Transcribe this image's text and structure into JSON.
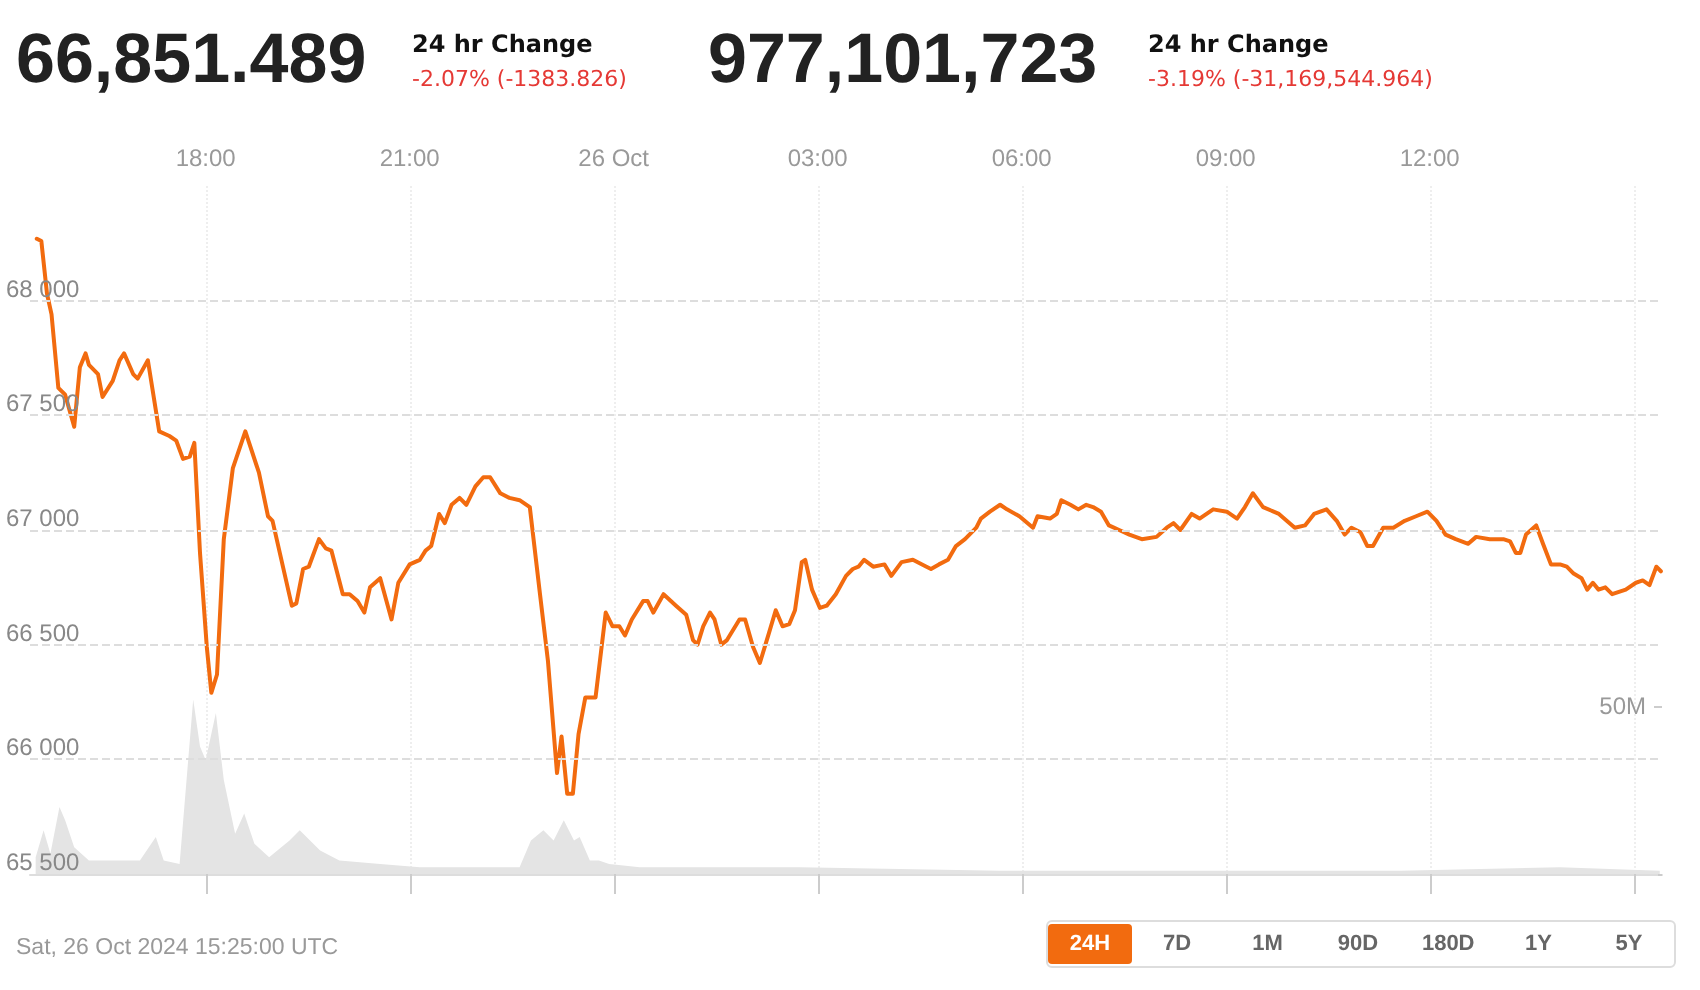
{
  "chart_data": {
    "type": "line",
    "annotations": [
      "66,851.489",
      "24 hr Change",
      "-2.07% (-1383.826)",
      "977,101,723",
      "24 hr Change",
      "-3.19% (-31,169,544.964)",
      "Sat, 26 Oct 2024 15:25:00 UTC",
      "24H",
      "7D",
      "1M",
      "90D",
      "180D",
      "1Y",
      "5Y"
    ],
    "series": [
      {
        "type": "area",
        "axis": "y2",
        "color": "#e4e4e4",
        "x": [
          "2024-10-25T15:30",
          "2024-10-25T15:37",
          "2024-10-25T15:43",
          "2024-10-25T15:51",
          "2024-10-25T15:56",
          "2024-10-25T16:04",
          "2024-10-25T16:17",
          "2024-10-25T16:35",
          "2024-10-25T17:02",
          "2024-10-25T17:16",
          "2024-10-25T17:23",
          "2024-10-25T17:37",
          "2024-10-25T17:49",
          "2024-10-25T17:55",
          "2024-10-25T18:00",
          "2024-10-25T18:09",
          "2024-10-25T18:16",
          "2024-10-25T18:26",
          "2024-10-25T18:34",
          "2024-10-25T18:43",
          "2024-10-25T18:56",
          "2024-10-25T19:14",
          "2024-10-25T19:23",
          "2024-10-25T19:41",
          "2024-10-25T19:58",
          "2024-10-25T20:34",
          "2024-10-25T21:09",
          "2024-10-25T22:02",
          "2024-10-25T22:37",
          "2024-10-25T22:47",
          "2024-10-25T22:58",
          "2024-10-25T23:07",
          "2024-10-25T23:16",
          "2024-10-25T23:25",
          "2024-10-25T23:30",
          "2024-10-25T23:39",
          "2024-10-25T23:47",
          "2024-10-25T23:56",
          "2024-10-26T00:23",
          "2024-10-26T02:44",
          "2024-10-26T05:41",
          "2024-10-26T08:37",
          "2024-10-26T11:34",
          "2024-10-26T13:55",
          "2024-10-26T15:23"
        ],
        "values": [
          5,
          13,
          6,
          20,
          16,
          8,
          4,
          4,
          4,
          11,
          4,
          3,
          52,
          38,
          34,
          48,
          28,
          12,
          18,
          9,
          5,
          10,
          13,
          7,
          4,
          3,
          2,
          2,
          2,
          10,
          13,
          10,
          16,
          10,
          11,
          4,
          4,
          3,
          2,
          2,
          1,
          1,
          1,
          2,
          1
        ]
      },
      {
        "type": "line",
        "color": "#f26b0f",
        "x": [
          "2024-10-25T15:31",
          "2024-10-25T15:35",
          "2024-10-25T15:40",
          "2024-10-25T15:44",
          "2024-10-25T15:50",
          "2024-10-25T15:56",
          "2024-10-25T16:04",
          "2024-10-25T16:09",
          "2024-10-25T16:14",
          "2024-10-25T16:17",
          "2024-10-25T16:25",
          "2024-10-25T16:29",
          "2024-10-25T16:38",
          "2024-10-25T16:44",
          "2024-10-25T16:48",
          "2024-10-25T16:56",
          "2024-10-25T17:00",
          "2024-10-25T17:09",
          "2024-10-25T17:19",
          "2024-10-25T17:28",
          "2024-10-25T17:34",
          "2024-10-25T17:40",
          "2024-10-25T17:46",
          "2024-10-25T17:50",
          "2024-10-25T17:55",
          "2024-10-25T18:01",
          "2024-10-25T18:05",
          "2024-10-25T18:10",
          "2024-10-25T18:16",
          "2024-10-25T18:24",
          "2024-10-25T18:35",
          "2024-10-25T18:47",
          "2024-10-25T18:55",
          "2024-10-25T18:59",
          "2024-10-25T19:16",
          "2024-10-25T19:20",
          "2024-10-25T19:26",
          "2024-10-25T19:31",
          "2024-10-25T19:40",
          "2024-10-25T19:46",
          "2024-10-25T19:51",
          "2024-10-25T20:01",
          "2024-10-25T20:07",
          "2024-10-25T20:14",
          "2024-10-25T20:20",
          "2024-10-25T20:25",
          "2024-10-25T20:34",
          "2024-10-25T20:44",
          "2024-10-25T20:50",
          "2024-10-25T21:00",
          "2024-10-25T21:09",
          "2024-10-25T21:14",
          "2024-10-25T21:19",
          "2024-10-25T21:26",
          "2024-10-25T21:31",
          "2024-10-25T21:37",
          "2024-10-25T21:44",
          "2024-10-25T21:50",
          "2024-10-25T21:58",
          "2024-10-25T22:05",
          "2024-10-25T22:11",
          "2024-10-25T22:20",
          "2024-10-25T22:28",
          "2024-10-25T22:37",
          "2024-10-25T22:46",
          "2024-10-25T22:55",
          "2024-10-25T23:02",
          "2024-10-25T23:10",
          "2024-10-25T23:14",
          "2024-10-25T23:19",
          "2024-10-25T23:24",
          "2024-10-25T23:29",
          "2024-10-25T23:35",
          "2024-10-25T23:44",
          "2024-10-25T23:53",
          "2024-10-25T23:59",
          "2024-10-26T00:05",
          "2024-10-26T00:10",
          "2024-10-26T00:16",
          "2024-10-26T00:26",
          "2024-10-26T00:30",
          "2024-10-26T00:35",
          "2024-10-26T00:44",
          "2024-10-26T00:55",
          "2024-10-26T01:04",
          "2024-10-26T01:10",
          "2024-10-26T01:14",
          "2024-10-26T01:19",
          "2024-10-26T01:25",
          "2024-10-26T01:29",
          "2024-10-26T01:35",
          "2024-10-26T01:40",
          "2024-10-26T01:51",
          "2024-10-26T01:56",
          "2024-10-26T02:03",
          "2024-10-26T02:09",
          "2024-10-26T02:17",
          "2024-10-26T02:23",
          "2024-10-26T02:29",
          "2024-10-26T02:35",
          "2024-10-26T02:40",
          "2024-10-26T02:46",
          "2024-10-26T02:49",
          "2024-10-26T02:55",
          "2024-10-26T03:02",
          "2024-10-26T03:08",
          "2024-10-26T03:16",
          "2024-10-26T03:25",
          "2024-10-26T03:31",
          "2024-10-26T03:36",
          "2024-10-26T03:41",
          "2024-10-26T03:49",
          "2024-10-26T03:59",
          "2024-10-26T04:05",
          "2024-10-26T04:14",
          "2024-10-26T04:24",
          "2024-10-26T04:36",
          "2024-10-26T04:40",
          "2024-10-26T04:47",
          "2024-10-26T04:55",
          "2024-10-26T05:02",
          "2024-10-26T05:10",
          "2024-10-26T05:20",
          "2024-10-26T05:24",
          "2024-10-26T05:32",
          "2024-10-26T05:41",
          "2024-10-26T05:47",
          "2024-10-26T05:58",
          "2024-10-26T06:10",
          "2024-10-26T06:14",
          "2024-10-26T06:25",
          "2024-10-26T06:31",
          "2024-10-26T06:35",
          "2024-10-26T06:43",
          "2024-10-26T06:50",
          "2024-10-26T06:57",
          "2024-10-26T07:03",
          "2024-10-26T07:10",
          "2024-10-26T07:17",
          "2024-10-26T07:26",
          "2024-10-26T07:35",
          "2024-10-26T07:46",
          "2024-10-26T07:59",
          "2024-10-26T08:08",
          "2024-10-26T08:14",
          "2024-10-26T08:20",
          "2024-10-26T08:30",
          "2024-10-26T08:37",
          "2024-10-26T08:49",
          "2024-10-26T09:01",
          "2024-10-26T09:10",
          "2024-10-26T09:17",
          "2024-10-26T09:24",
          "2024-10-26T09:33",
          "2024-10-26T09:47",
          "2024-10-26T10:01",
          "2024-10-26T10:10",
          "2024-10-26T10:18",
          "2024-10-26T10:29",
          "2024-10-26T10:38",
          "2024-10-26T10:45",
          "2024-10-26T10:51",
          "2024-10-26T10:59",
          "2024-10-26T11:05",
          "2024-10-26T11:10",
          "2024-10-26T11:19",
          "2024-10-26T11:28",
          "2024-10-26T11:38",
          "2024-10-26T11:48",
          "2024-10-26T11:58",
          "2024-10-26T12:06",
          "2024-10-26T12:14",
          "2024-10-26T12:23",
          "2024-10-26T12:34",
          "2024-10-26T12:41",
          "2024-10-26T12:53",
          "2024-10-26T13:05",
          "2024-10-26T13:11",
          "2024-10-26T13:16",
          "2024-10-26T13:20",
          "2024-10-26T13:25",
          "2024-10-26T13:34",
          "2024-10-26T13:40",
          "2024-10-26T13:47",
          "2024-10-26T13:55",
          "2024-10-26T14:01",
          "2024-10-26T14:07",
          "2024-10-26T14:14",
          "2024-10-26T14:19",
          "2024-10-26T14:24",
          "2024-10-26T14:29",
          "2024-10-26T14:35",
          "2024-10-26T14:41",
          "2024-10-26T14:53",
          "2024-10-26T15:02",
          "2024-10-26T15:08",
          "2024-10-26T15:14",
          "2024-10-26T15:20",
          "2024-10-26T15:24"
        ],
        "values": [
          68270,
          68260,
          68030,
          67940,
          67620,
          67590,
          67450,
          67710,
          67770,
          67720,
          67680,
          67580,
          67650,
          67740,
          67770,
          67680,
          67660,
          67740,
          67430,
          67410,
          67390,
          67310,
          67320,
          67380,
          66900,
          66490,
          66290,
          66370,
          66960,
          67270,
          67430,
          67250,
          67060,
          67040,
          66670,
          66680,
          66830,
          66840,
          66960,
          66920,
          66910,
          66720,
          66720,
          66690,
          66640,
          66750,
          66790,
          66610,
          66770,
          66850,
          66870,
          66910,
          66930,
          67070,
          67030,
          67110,
          67140,
          67110,
          67190,
          67230,
          67230,
          67160,
          67140,
          67130,
          67100,
          66720,
          66430,
          65940,
          66100,
          65850,
          65850,
          66110,
          66270,
          66270,
          66640,
          66580,
          66580,
          66540,
          66610,
          66690,
          66690,
          66640,
          66720,
          66670,
          66630,
          66520,
          66500,
          66580,
          66640,
          66610,
          66500,
          66520,
          66610,
          66610,
          66490,
          66420,
          66550,
          66650,
          66580,
          66590,
          66650,
          66860,
          66870,
          66740,
          66660,
          66670,
          66720,
          66800,
          66830,
          66840,
          66870,
          66840,
          66850,
          66800,
          66860,
          66870,
          66840,
          66830,
          66850,
          66870,
          66930,
          66960,
          67010,
          67050,
          67080,
          67110,
          67090,
          67060,
          67010,
          67060,
          67050,
          67070,
          67130,
          67110,
          67090,
          67110,
          67100,
          67080,
          67020,
          67000,
          66980,
          66960,
          66970,
          67010,
          67030,
          67000,
          67070,
          67050,
          67090,
          67080,
          67050,
          67100,
          67160,
          67100,
          67070,
          67010,
          67020,
          67070,
          67090,
          67040,
          66980,
          67010,
          66990,
          66930,
          66930,
          67010,
          67010,
          67040,
          67060,
          67080,
          67040,
          66980,
          66960,
          66940,
          66970,
          66960,
          66960,
          66950,
          66900,
          66900,
          66980,
          67020,
          66940,
          66850,
          66850,
          66840,
          66810,
          66790,
          66740,
          66770,
          66740,
          66750,
          66720,
          66740,
          66770,
          66780,
          66760,
          66840,
          66820
        ]
      }
    ],
    "xlim": [
      "2024-10-25T15:25",
      "2024-10-26T15:25"
    ],
    "xticks": [
      {
        "value": "2024-10-25T18:00",
        "label": "18:00"
      },
      {
        "value": "2024-10-25T21:00",
        "label": "21:00"
      },
      {
        "value": "2024-10-26T00:00",
        "label": "26 Oct"
      },
      {
        "value": "2024-10-26T03:00",
        "label": "03:00"
      },
      {
        "value": "2024-10-26T06:00",
        "label": "06:00"
      },
      {
        "value": "2024-10-26T09:00",
        "label": "09:00"
      },
      {
        "value": "2024-10-26T12:00",
        "label": "12:00"
      },
      {
        "value": "2024-10-26T15:00",
        "label": null
      }
    ],
    "ylim": [
      65500,
      68500
    ],
    "yticks": [
      {
        "value": 65500,
        "label": "65 500"
      },
      {
        "value": 66000,
        "label": "66 000"
      },
      {
        "value": 66500,
        "label": "66 500"
      },
      {
        "value": 67000,
        "label": "67 000"
      },
      {
        "value": 67500,
        "label": "67 500"
      },
      {
        "value": 68000,
        "label": "68 000"
      }
    ],
    "y2lim": [
      0,
      205
    ],
    "y2ticks": [
      {
        "value": 0,
        "label": null
      },
      {
        "value": 50,
        "label": "50M"
      }
    ],
    "grid": true,
    "marker": "none",
    "line_style": "solid"
  }
}
